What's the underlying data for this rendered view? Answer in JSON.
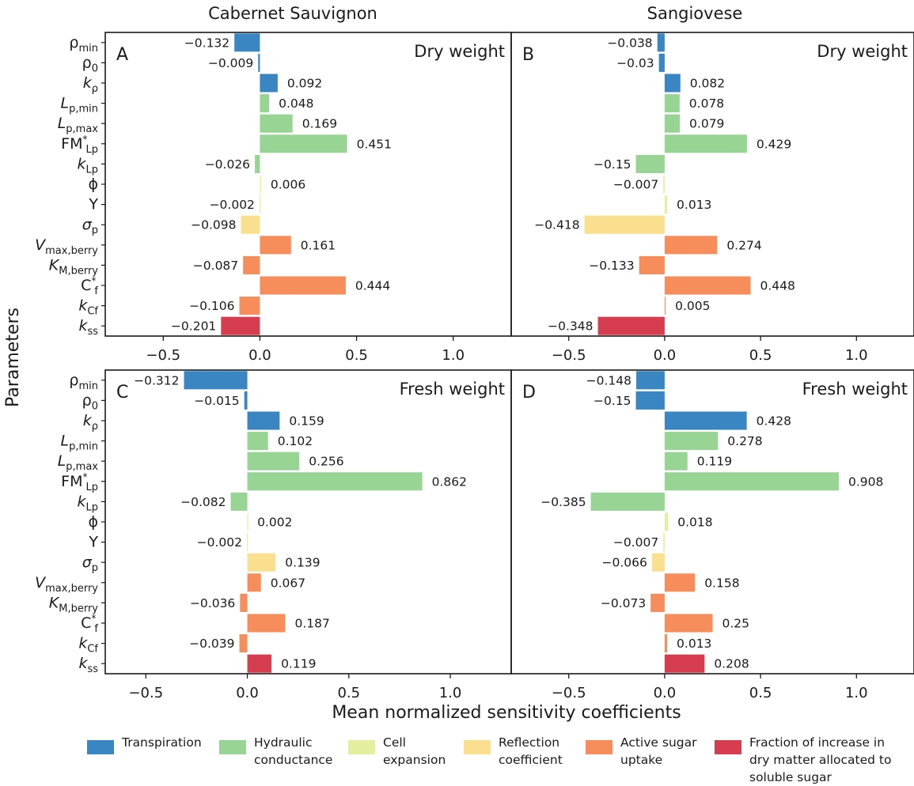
{
  "figure": {
    "col_titles": [
      "Cabernet Sauvignon",
      "Sangiovese"
    ],
    "y_axis_title": "Parameters",
    "x_axis_title": "Mean normalized sensitivity coefficients"
  },
  "colors": {
    "Transpiration": "#3a86c3",
    "Hydraulic conductance": "#98d493",
    "Cell expansion": "#e5ee9e",
    "Reflection coefficient": "#fae08e",
    "Active sugar uptake": "#f68d5b",
    "Fraction of increase in dry matter allocated to soluble sugar": "#d63d4f"
  },
  "legend": [
    {
      "key": "Transpiration",
      "label": "Transpiration"
    },
    {
      "key": "Hydraulic conductance",
      "label": "Hydraulic\nconductance"
    },
    {
      "key": "Cell expansion",
      "label": "Cell\nexpansion"
    },
    {
      "key": "Reflection coefficient",
      "label": "Reflection\ncoefficient"
    },
    {
      "key": "Active sugar uptake",
      "label": "Active sugar\nuptake"
    },
    {
      "key": "Fraction of increase in dry matter allocated to soluble sugar",
      "label": "Fraction of increase in\ndry matter allocated to\n soluble sugar"
    }
  ],
  "chart_data": [
    {
      "type": "bar",
      "orientation": "horizontal",
      "panel": "A",
      "variety": "Cabernet Sauvignon",
      "title": "Dry weight",
      "xlim": [
        -0.8,
        1.3
      ],
      "xticks": [
        "-0.5",
        "0.0",
        "0.5",
        "1.0"
      ],
      "xtick_values": [
        -0.5,
        0.0,
        0.5,
        1.0
      ],
      "categories": [
        "ρmin",
        "ρ0",
        "kρ",
        "Lp,min",
        "Lp,max",
        "FM*Lp",
        "kLp",
        "ϕ",
        "Y",
        "σp",
        "Vmax,berry",
        "KM,berry",
        "C*f",
        "kCf",
        "kss"
      ],
      "groups": [
        "Transpiration",
        "Transpiration",
        "Transpiration",
        "Hydraulic conductance",
        "Hydraulic conductance",
        "Hydraulic conductance",
        "Hydraulic conductance",
        "Cell expansion",
        "Cell expansion",
        "Reflection coefficient",
        "Active sugar uptake",
        "Active sugar uptake",
        "Active sugar uptake",
        "Active sugar uptake",
        "Fraction of increase in dry matter allocated to soluble sugar"
      ],
      "values": [
        -0.132,
        -0.009,
        0.092,
        0.048,
        0.169,
        0.451,
        -0.026,
        0.006,
        -0.002,
        -0.098,
        0.161,
        -0.087,
        0.444,
        -0.106,
        -0.201
      ],
      "value_labels": [
        "−0.132",
        "−0.009",
        "0.092",
        "0.048",
        "0.169",
        "0.451",
        "−0.026",
        "0.006",
        "−0.002",
        "−0.098",
        "0.161",
        "−0.087",
        "0.444",
        "−0.106",
        "−0.201"
      ]
    },
    {
      "type": "bar",
      "orientation": "horizontal",
      "panel": "B",
      "variety": "Sangiovese",
      "title": "Dry weight",
      "xlim": [
        -0.8,
        1.3
      ],
      "xticks": [
        "-0.5",
        "0.0",
        "0.5",
        "1.0"
      ],
      "xtick_values": [
        -0.5,
        0.0,
        0.5,
        1.0
      ],
      "categories": [
        "ρmin",
        "ρ0",
        "kρ",
        "Lp,min",
        "Lp,max",
        "FM*Lp",
        "kLp",
        "ϕ",
        "Y",
        "σp",
        "Vmax,berry",
        "KM,berry",
        "C*f",
        "kCf",
        "kss"
      ],
      "groups": [
        "Transpiration",
        "Transpiration",
        "Transpiration",
        "Hydraulic conductance",
        "Hydraulic conductance",
        "Hydraulic conductance",
        "Hydraulic conductance",
        "Cell expansion",
        "Cell expansion",
        "Reflection coefficient",
        "Active sugar uptake",
        "Active sugar uptake",
        "Active sugar uptake",
        "Active sugar uptake",
        "Fraction of increase in dry matter allocated to soluble sugar"
      ],
      "values": [
        -0.038,
        -0.03,
        0.082,
        0.078,
        0.079,
        0.429,
        -0.15,
        -0.007,
        0.013,
        -0.418,
        0.274,
        -0.133,
        0.448,
        0.005,
        -0.348
      ],
      "value_labels": [
        "−0.038",
        "−0.03",
        "0.082",
        "0.078",
        "0.079",
        "0.429",
        "−0.15",
        "−0.007",
        "0.013",
        "−0.418",
        "0.274",
        "−0.133",
        "0.448",
        "0.005",
        "−0.348"
      ]
    },
    {
      "type": "bar",
      "orientation": "horizontal",
      "panel": "C",
      "variety": "Cabernet Sauvignon",
      "title": "Fresh weight",
      "xlim": [
        -0.7,
        1.3
      ],
      "xticks": [
        "-0.5",
        "0.0",
        "0.5",
        "1.0"
      ],
      "xtick_values": [
        -0.5,
        0.0,
        0.5,
        1.0
      ],
      "categories": [
        "ρmin",
        "ρ0",
        "kρ",
        "Lp,min",
        "Lp,max",
        "FM*Lp",
        "kLp",
        "ϕ",
        "Y",
        "σp",
        "Vmax,berry",
        "KM,berry",
        "C*f",
        "kCf",
        "kss"
      ],
      "groups": [
        "Transpiration",
        "Transpiration",
        "Transpiration",
        "Hydraulic conductance",
        "Hydraulic conductance",
        "Hydraulic conductance",
        "Hydraulic conductance",
        "Cell expansion",
        "Cell expansion",
        "Reflection coefficient",
        "Active sugar uptake",
        "Active sugar uptake",
        "Active sugar uptake",
        "Active sugar uptake",
        "Fraction of increase in dry matter allocated to soluble sugar"
      ],
      "values": [
        -0.312,
        -0.015,
        0.159,
        0.102,
        0.256,
        0.862,
        -0.082,
        0.002,
        -0.002,
        0.139,
        0.067,
        -0.036,
        0.187,
        -0.039,
        0.119
      ],
      "value_labels": [
        "−0.312",
        "−0.015",
        "0.159",
        "0.102",
        "0.256",
        "0.862",
        "−0.082",
        "0.002",
        "−0.002",
        "0.139",
        "0.067",
        "−0.036",
        "0.187",
        "−0.039",
        "0.119"
      ]
    },
    {
      "type": "bar",
      "orientation": "horizontal",
      "panel": "D",
      "variety": "Sangiovese",
      "title": "Fresh weight",
      "xlim": [
        -0.8,
        1.3
      ],
      "xticks": [
        "-0.5",
        "0.0",
        "0.5",
        "1.0"
      ],
      "xtick_values": [
        -0.5,
        0.0,
        0.5,
        1.0
      ],
      "categories": [
        "ρmin",
        "ρ0",
        "kρ",
        "Lp,min",
        "Lp,max",
        "FM*Lp",
        "kLp",
        "ϕ",
        "Y",
        "σp",
        "Vmax,berry",
        "KM,berry",
        "C*f",
        "kCf",
        "kss"
      ],
      "groups": [
        "Transpiration",
        "Transpiration",
        "Transpiration",
        "Hydraulic conductance",
        "Hydraulic conductance",
        "Hydraulic conductance",
        "Hydraulic conductance",
        "Cell expansion",
        "Cell expansion",
        "Reflection coefficient",
        "Active sugar uptake",
        "Active sugar uptake",
        "Active sugar uptake",
        "Active sugar uptake",
        "Fraction of increase in dry matter allocated to soluble sugar"
      ],
      "values": [
        -0.148,
        -0.15,
        0.428,
        0.278,
        0.119,
        0.908,
        -0.385,
        0.018,
        -0.007,
        -0.066,
        0.158,
        -0.073,
        0.25,
        0.013,
        0.208
      ],
      "value_labels": [
        "−0.148",
        "−0.15",
        "0.428",
        "0.278",
        "0.119",
        "0.908",
        "−0.385",
        "0.018",
        "−0.007",
        "−0.066",
        "0.158",
        "−0.073",
        "0.25",
        "0.013",
        "0.208"
      ]
    }
  ]
}
